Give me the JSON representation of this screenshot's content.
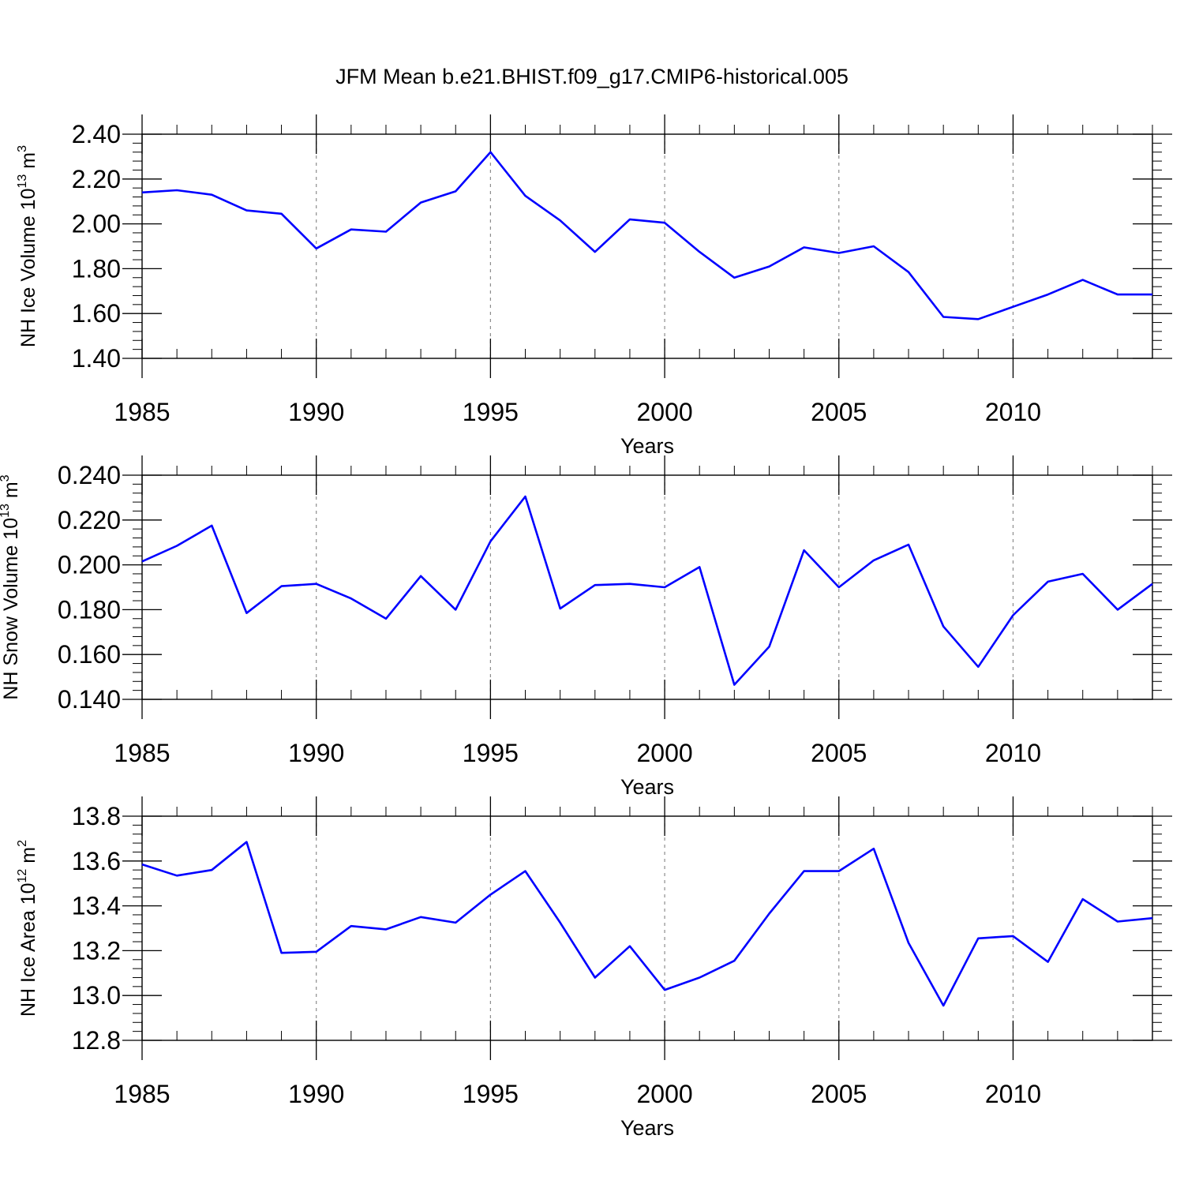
{
  "figure": {
    "title": "JFM Mean b.e21.BHIST.f09_g17.CMIP6-historical.005"
  },
  "line_color": "#0000ff",
  "chart_data": [
    {
      "type": "line",
      "xlabel": "Years",
      "ylabel": {
        "prefix": "NH Ice Volume 10",
        "exponent": "13",
        "unit": " m",
        "unit_exponent": "3"
      },
      "xlim": [
        1985,
        2014
      ],
      "ylim": [
        1.4,
        2.4
      ],
      "x_ticks": [
        1985,
        1990,
        1995,
        2000,
        2005,
        2010
      ],
      "x_tick_labels": [
        "1985",
        "1990",
        "1995",
        "2000",
        "2005",
        "2010"
      ],
      "y_ticks": [
        1.4,
        1.6,
        1.8,
        2.0,
        2.2,
        2.4
      ],
      "y_tick_labels": [
        "1.40",
        "1.60",
        "1.80",
        "2.00",
        "2.20",
        "2.40"
      ],
      "grid": "vertical-dashed-at-major-x-ticks",
      "x": [
        1985,
        1986,
        1987,
        1988,
        1989,
        1990,
        1991,
        1992,
        1993,
        1994,
        1995,
        1996,
        1997,
        1998,
        1999,
        2000,
        2001,
        2002,
        2003,
        2004,
        2005,
        2006,
        2007,
        2008,
        2009,
        2010,
        2011,
        2012,
        2013,
        2014
      ],
      "series": [
        {
          "values": [
            2.14,
            2.15,
            2.13,
            2.06,
            2.045,
            1.89,
            1.975,
            1.965,
            2.095,
            2.145,
            2.32,
            2.125,
            2.015,
            1.875,
            2.02,
            2.005,
            1.875,
            1.76,
            1.81,
            1.895,
            1.87,
            1.9,
            1.785,
            1.585,
            1.575,
            1.63,
            1.685,
            1.75,
            1.685,
            1.685
          ]
        }
      ]
    },
    {
      "type": "line",
      "xlabel": "Years",
      "ylabel": {
        "prefix": "NH Snow Volume 10",
        "exponent": "13",
        "unit": " m",
        "unit_exponent": "3"
      },
      "xlim": [
        1985,
        2014
      ],
      "ylim": [
        0.14,
        0.24
      ],
      "x_ticks": [
        1985,
        1990,
        1995,
        2000,
        2005,
        2010
      ],
      "x_tick_labels": [
        "1985",
        "1990",
        "1995",
        "2000",
        "2005",
        "2010"
      ],
      "y_ticks": [
        0.14,
        0.16,
        0.18,
        0.2,
        0.22,
        0.24
      ],
      "y_tick_labels": [
        "0.140",
        "0.160",
        "0.180",
        "0.200",
        "0.220",
        "0.240"
      ],
      "grid": "vertical-dashed-at-major-x-ticks",
      "x": [
        1985,
        1986,
        1987,
        1988,
        1989,
        1990,
        1991,
        1992,
        1993,
        1994,
        1995,
        1996,
        1997,
        1998,
        1999,
        2000,
        2001,
        2002,
        2003,
        2004,
        2005,
        2006,
        2007,
        2008,
        2009,
        2010,
        2011,
        2012,
        2013,
        2014
      ],
      "series": [
        {
          "values": [
            0.2015,
            0.2085,
            0.2175,
            0.1785,
            0.1905,
            0.1915,
            0.185,
            0.176,
            0.195,
            0.18,
            0.2105,
            0.2305,
            0.1805,
            0.191,
            0.1915,
            0.19,
            0.199,
            0.1465,
            0.1635,
            0.2065,
            0.19,
            0.202,
            0.209,
            0.1725,
            0.1545,
            0.1775,
            0.1925,
            0.196,
            0.18,
            0.1915
          ]
        }
      ]
    },
    {
      "type": "line",
      "xlabel": "Years",
      "ylabel": {
        "prefix": "NH Ice Area 10",
        "exponent": "12",
        "unit": " m",
        "unit_exponent": "2"
      },
      "xlim": [
        1985,
        2014
      ],
      "ylim": [
        12.8,
        13.8
      ],
      "x_ticks": [
        1985,
        1990,
        1995,
        2000,
        2005,
        2010
      ],
      "x_tick_labels": [
        "1985",
        "1990",
        "1995",
        "2000",
        "2005",
        "2010"
      ],
      "y_ticks": [
        12.8,
        13.0,
        13.2,
        13.4,
        13.6,
        13.8
      ],
      "y_tick_labels": [
        "12.8",
        "13.0",
        "13.2",
        "13.4",
        "13.6",
        "13.8"
      ],
      "grid": "vertical-dashed-at-major-x-ticks",
      "x": [
        1985,
        1986,
        1987,
        1988,
        1989,
        1990,
        1991,
        1992,
        1993,
        1994,
        1995,
        1996,
        1997,
        1998,
        1999,
        2000,
        2001,
        2002,
        2003,
        2004,
        2005,
        2006,
        2007,
        2008,
        2009,
        2010,
        2011,
        2012,
        2013,
        2014
      ],
      "series": [
        {
          "values": [
            13.585,
            13.535,
            13.56,
            13.685,
            13.19,
            13.195,
            13.31,
            13.295,
            13.35,
            13.325,
            13.45,
            13.555,
            13.325,
            13.08,
            13.22,
            13.025,
            13.08,
            13.155,
            13.365,
            13.555,
            13.555,
            13.655,
            13.235,
            12.955,
            13.255,
            13.265,
            13.15,
            13.43,
            13.33,
            13.345
          ]
        }
      ]
    }
  ]
}
